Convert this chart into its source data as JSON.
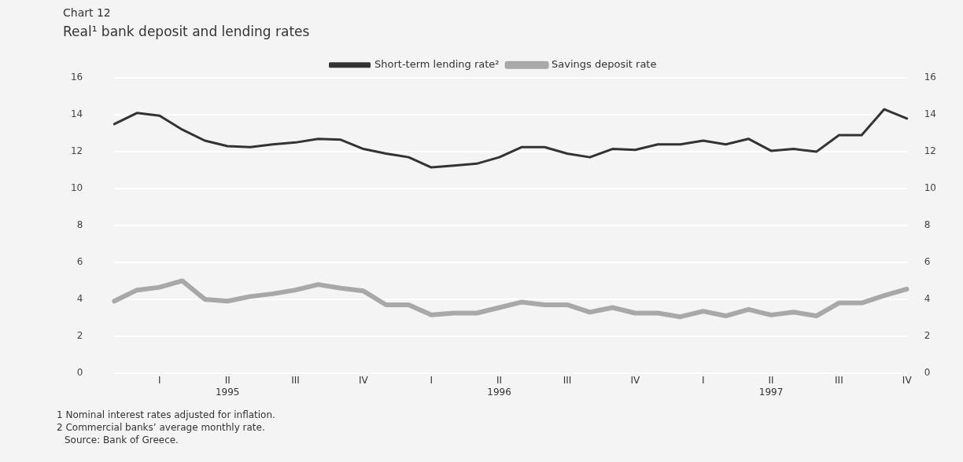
{
  "chart_data": {
    "type": "line",
    "subtitle": "Chart 12",
    "title": "Real¹ bank deposit and lending rates",
    "categories": [
      null,
      null,
      "I",
      null,
      null,
      "II\n1995",
      null,
      null,
      "III",
      null,
      null,
      "IV",
      null,
      null,
      "I",
      null,
      null,
      "II\n1996",
      null,
      null,
      "III",
      null,
      null,
      "IV",
      null,
      null,
      "I",
      null,
      null,
      "II\n1997",
      null,
      null,
      "III",
      null,
      null,
      "IV"
    ],
    "series": [
      {
        "name": "Short-term lending rate²",
        "color": "#333333",
        "values": [
          13.5,
          14.1,
          13.95,
          13.2,
          12.6,
          12.3,
          12.25,
          12.4,
          12.5,
          12.7,
          12.65,
          12.15,
          11.9,
          11.7,
          11.15,
          11.25,
          11.35,
          11.7,
          12.25,
          12.25,
          11.9,
          11.7,
          12.15,
          12.1,
          12.4,
          12.4,
          12.6,
          12.4,
          12.7,
          12.05,
          12.15,
          12.0,
          12.9,
          12.9,
          14.3,
          13.8
        ]
      },
      {
        "name": "Savings deposit rate",
        "color": "#a8a8a8",
        "values": [
          3.9,
          4.5,
          4.65,
          5.0,
          4.0,
          3.9,
          4.15,
          4.3,
          4.5,
          4.8,
          4.6,
          4.45,
          3.7,
          3.7,
          3.15,
          3.25,
          3.25,
          3.55,
          3.85,
          3.7,
          3.7,
          3.3,
          3.55,
          3.25,
          3.25,
          3.05,
          3.35,
          3.1,
          3.45,
          3.15,
          3.3,
          3.1,
          3.8,
          3.8,
          4.2,
          4.55
        ]
      }
    ],
    "ylim": [
      0,
      16
    ],
    "yticks": [
      0,
      2,
      4,
      6,
      8,
      10,
      12,
      14,
      16
    ],
    "y2lim": [
      0,
      16
    ],
    "y2ticks": [
      0,
      2,
      4,
      6,
      8,
      10,
      12,
      14,
      16
    ],
    "grid": "y",
    "legend": "top",
    "marker": "none",
    "line_style": "solid",
    "annotations": [
      "1 Nominal interest rates adjusted for inflation.",
      "2 Commercial banks’ average monthly rate.",
      "Source: Bank of Greece."
    ]
  }
}
